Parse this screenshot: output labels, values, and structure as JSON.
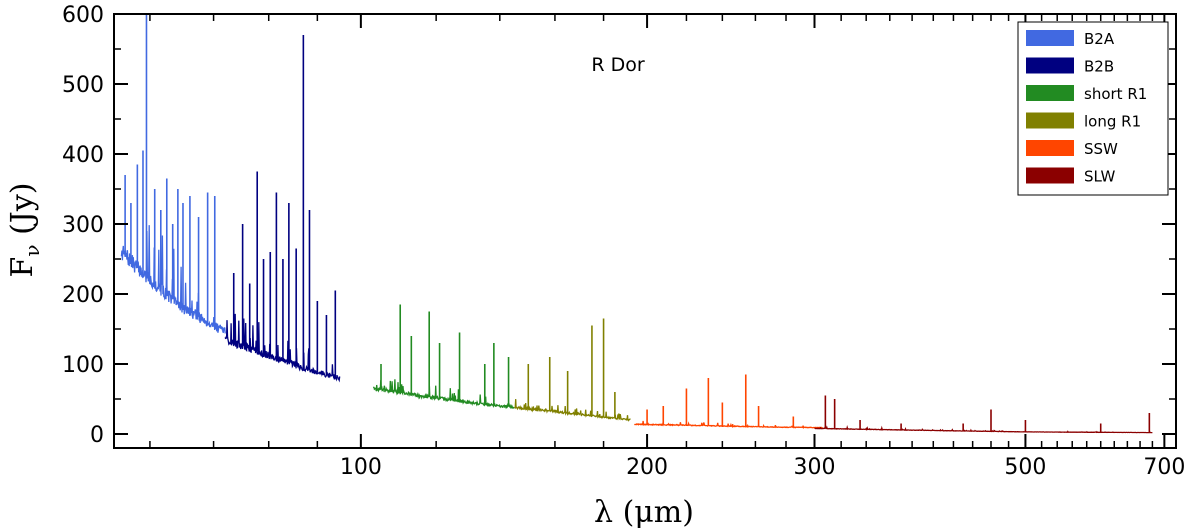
{
  "chart_data": {
    "type": "line",
    "title": "",
    "annotation": "R Dor",
    "xlabel": "λ (μm)",
    "ylabel": "F_ν (Jy)",
    "xscale": "log",
    "xlim": [
      55,
      720
    ],
    "ylim": [
      -20,
      600
    ],
    "grid": false,
    "legend_position": "top-right",
    "x_ticks": [
      {
        "value": 100,
        "label": "100"
      },
      {
        "value": 200,
        "label": "200"
      },
      {
        "value": 300,
        "label": "300"
      },
      {
        "value": 500,
        "label": "500"
      },
      {
        "value": 700,
        "label": "700"
      }
    ],
    "y_ticks": [
      {
        "value": 0,
        "label": "0"
      },
      {
        "value": 100,
        "label": "100"
      },
      {
        "value": 200,
        "label": "200"
      },
      {
        "value": 300,
        "label": "300"
      },
      {
        "value": 400,
        "label": "400"
      },
      {
        "value": 500,
        "label": "500"
      },
      {
        "value": 600,
        "label": "600"
      }
    ],
    "series": [
      {
        "name": "B2A",
        "color": "#4169e1",
        "x_range": [
          56,
          72
        ],
        "continuum": [
          [
            56,
            260
          ],
          [
            60,
            220
          ],
          [
            65,
            180
          ],
          [
            70,
            155
          ],
          [
            72,
            145
          ]
        ],
        "lines": [
          [
            56.5,
            370
          ],
          [
            57.3,
            330
          ],
          [
            58.2,
            385
          ],
          [
            59.0,
            405
          ],
          [
            59.5,
            600
          ],
          [
            60.7,
            350
          ],
          [
            61.6,
            320
          ],
          [
            62.5,
            365
          ],
          [
            63.4,
            300
          ],
          [
            64.2,
            350
          ],
          [
            65.0,
            330
          ],
          [
            66.1,
            340
          ],
          [
            67.5,
            310
          ],
          [
            69.0,
            345
          ],
          [
            70.2,
            340
          ]
        ]
      },
      {
        "name": "B2B",
        "color": "#000080",
        "x_range": [
          72,
          95
        ],
        "continuum": [
          [
            72,
            135
          ],
          [
            80,
            112
          ],
          [
            88,
            92
          ],
          [
            95,
            80
          ]
        ],
        "lines": [
          [
            73.5,
            230
          ],
          [
            75.1,
            300
          ],
          [
            76.4,
            215
          ],
          [
            77.8,
            375
          ],
          [
            79.0,
            250
          ],
          [
            80.3,
            260
          ],
          [
            81.5,
            345
          ],
          [
            82.8,
            250
          ],
          [
            84.0,
            330
          ],
          [
            85.5,
            265
          ],
          [
            87.0,
            570
          ],
          [
            88.3,
            320
          ],
          [
            90.0,
            190
          ],
          [
            92.0,
            170
          ],
          [
            94.0,
            205
          ]
        ]
      },
      {
        "name": "short R1",
        "color": "#228b22",
        "x_range": [
          103,
          145
        ],
        "continuum": [
          [
            103,
            65
          ],
          [
            115,
            55
          ],
          [
            130,
            45
          ],
          [
            145,
            38
          ]
        ],
        "lines": [
          [
            105,
            100
          ],
          [
            110,
            185
          ],
          [
            113,
            140
          ],
          [
            118,
            175
          ],
          [
            121,
            130
          ],
          [
            127,
            145
          ],
          [
            135,
            100
          ],
          [
            138,
            130
          ],
          [
            143,
            110
          ]
        ]
      },
      {
        "name": "long R1",
        "color": "#808000",
        "x_range": [
          145,
          192
        ],
        "continuum": [
          [
            145,
            38
          ],
          [
            160,
            32
          ],
          [
            175,
            26
          ],
          [
            192,
            20
          ]
        ],
        "lines": [
          [
            150,
            100
          ],
          [
            158,
            110
          ],
          [
            165,
            90
          ],
          [
            175,
            155
          ],
          [
            180,
            165
          ],
          [
            185,
            60
          ]
        ]
      },
      {
        "name": "SSW",
        "color": "#ff4500",
        "x_range": [
          194,
          306
        ],
        "continuum": [
          [
            194,
            14
          ],
          [
            230,
            12
          ],
          [
            270,
            10
          ],
          [
            306,
            9
          ]
        ],
        "lines": [
          [
            200,
            35
          ],
          [
            208,
            40
          ],
          [
            220,
            65
          ],
          [
            232,
            80
          ],
          [
            240,
            45
          ],
          [
            254,
            85
          ],
          [
            262,
            40
          ],
          [
            285,
            25
          ]
        ]
      },
      {
        "name": "SLW",
        "color": "#8b0000",
        "x_range": [
          300,
          680
        ],
        "continuum": [
          [
            300,
            8
          ],
          [
            400,
            5
          ],
          [
            500,
            3
          ],
          [
            680,
            2
          ]
        ],
        "lines": [
          [
            308,
            55
          ],
          [
            315,
            50
          ],
          [
            335,
            20
          ],
          [
            370,
            15
          ],
          [
            430,
            15
          ],
          [
            460,
            35
          ],
          [
            500,
            20
          ],
          [
            600,
            15
          ],
          [
            675,
            30
          ]
        ]
      }
    ]
  }
}
